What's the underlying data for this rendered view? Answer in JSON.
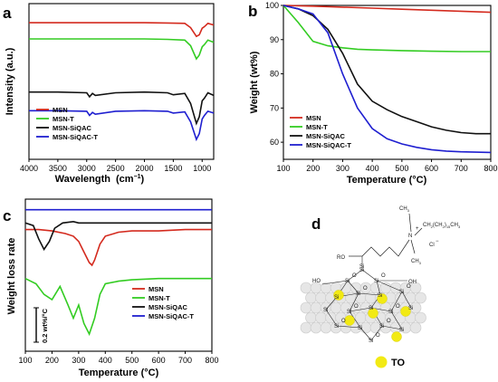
{
  "panels": {
    "a": {
      "letter": "a",
      "xlabel": "Wavelength",
      "xunit": "(cm",
      "xunit_sup": "−1",
      "xunit_close": ")",
      "ylabel": "Intensity (a.u.)"
    },
    "b": {
      "letter": "b",
      "xlabel": "Temperature (°C)",
      "ylabel": "Weight (wt%)"
    },
    "c": {
      "letter": "c",
      "xlabel": "Temperature (°C)",
      "ylabel": "Weight loss rate",
      "scalebar": "0.2 wt%/°C"
    },
    "d": {
      "letter": "d",
      "legend_label": "TO"
    }
  },
  "series_names": [
    "MSN",
    "MSN-T",
    "MSN-SiQAC",
    "MSN-SiQAC-T"
  ],
  "legend_c_names": [
    "MSN",
    "MSN-T",
    "MSN-SiQAC",
    "MSN-SiQAC-T"
  ],
  "colors": {
    "MSN": "#d42a1e",
    "MSN-T": "#33cc22",
    "MSN-SiQAC": "#111111",
    "MSN-SiQAC-T": "#1f1fd0",
    "TO": "#f2ea14"
  },
  "schematic": {
    "labels": [
      "RO",
      "Si",
      "O",
      "HO",
      "OH",
      "N",
      "Cl",
      "CH",
      "CH",
      "CH",
      "+",
      "−",
      "3",
      "3",
      "2",
      "2",
      "3",
      "15"
    ]
  },
  "chart_data": [
    {
      "type": "line",
      "panel": "a",
      "title": "",
      "xlabel": "Wavelength (cm−1)",
      "ylabel": "Intensity (a.u.)",
      "xlim": [
        4000,
        800
      ],
      "x_reversed": true,
      "xticks": [
        4000,
        3500,
        3000,
        2500,
        2000,
        1500,
        1000
      ],
      "y_ticks_shown": false,
      "series": [
        {
          "name": "MSN",
          "x": [
            4000,
            3500,
            3000,
            2500,
            2000,
            1600,
            1300,
            1200,
            1100,
            1050,
            1000,
            960,
            900,
            800
          ],
          "y": [
            0.97,
            0.97,
            0.97,
            0.97,
            0.97,
            0.96,
            0.95,
            0.82,
            0.55,
            0.6,
            0.8,
            0.85,
            0.95,
            0.9
          ]
        },
        {
          "name": "MSN-T",
          "x": [
            4000,
            3500,
            3000,
            2500,
            2000,
            1600,
            1300,
            1200,
            1100,
            1050,
            1000,
            960,
            900,
            800
          ],
          "y": [
            0.83,
            0.83,
            0.83,
            0.83,
            0.83,
            0.82,
            0.8,
            0.65,
            0.3,
            0.4,
            0.62,
            0.68,
            0.8,
            0.74
          ]
        },
        {
          "name": "MSN-SiQAC",
          "x": [
            4000,
            3500,
            3000,
            2950,
            2900,
            2850,
            2500,
            2000,
            1600,
            1500,
            1300,
            1200,
            1100,
            1050,
            1000,
            960,
            900,
            800
          ],
          "y": [
            0.57,
            0.57,
            0.56,
            0.5,
            0.55,
            0.52,
            0.56,
            0.57,
            0.56,
            0.53,
            0.55,
            0.4,
            0.1,
            0.2,
            0.44,
            0.48,
            0.56,
            0.52
          ]
        },
        {
          "name": "MSN-SiQAC-T",
          "x": [
            4000,
            3500,
            3000,
            2950,
            2900,
            2850,
            2500,
            2000,
            1600,
            1500,
            1300,
            1200,
            1100,
            1050,
            1000,
            960,
            900,
            800
          ],
          "y": [
            0.44,
            0.44,
            0.43,
            0.36,
            0.41,
            0.38,
            0.43,
            0.44,
            0.43,
            0.4,
            0.42,
            0.25,
            -0.05,
            0.05,
            0.3,
            0.36,
            0.43,
            0.4
          ]
        }
      ],
      "legend": "bottom-left"
    },
    {
      "type": "line",
      "panel": "b",
      "title": "",
      "xlabel": "Temperature (°C)",
      "ylabel": "Weight (wt%)",
      "xlim": [
        100,
        800
      ],
      "ylim": [
        55,
        100
      ],
      "xticks": [
        100,
        200,
        300,
        400,
        500,
        600,
        700,
        800
      ],
      "yticks": [
        60,
        70,
        80,
        90,
        100
      ],
      "series": [
        {
          "name": "MSN",
          "x": [
            100,
            200,
            300,
            400,
            500,
            600,
            700,
            800
          ],
          "y": [
            100,
            99.8,
            99.5,
            99.2,
            98.9,
            98.6,
            98.3,
            98.0
          ]
        },
        {
          "name": "MSN-T",
          "x": [
            100,
            150,
            200,
            250,
            300,
            350,
            400,
            500,
            600,
            700,
            800
          ],
          "y": [
            100,
            95,
            89.5,
            88.2,
            87.6,
            87.2,
            87.0,
            86.8,
            86.6,
            86.5,
            86.5
          ]
        },
        {
          "name": "MSN-SiQAC",
          "x": [
            100,
            150,
            200,
            250,
            300,
            350,
            400,
            450,
            500,
            550,
            600,
            650,
            700,
            750,
            800
          ],
          "y": [
            100,
            99,
            97,
            93,
            86,
            77,
            72,
            69.5,
            67.5,
            66,
            64.5,
            63.5,
            62.8,
            62.5,
            62.5
          ]
        },
        {
          "name": "MSN-SiQAC-T",
          "x": [
            100,
            150,
            200,
            250,
            300,
            350,
            400,
            450,
            500,
            550,
            600,
            650,
            700,
            750,
            800
          ],
          "y": [
            100,
            99,
            97.5,
            92,
            80,
            70,
            64,
            61,
            59.5,
            58.5,
            57.8,
            57.4,
            57.2,
            57.1,
            57.0
          ]
        }
      ],
      "legend": "bottom-left"
    },
    {
      "type": "line",
      "panel": "c",
      "title": "",
      "xlabel": "Temperature (°C)",
      "ylabel": "Weight loss rate",
      "xlim": [
        100,
        800
      ],
      "xticks": [
        100,
        200,
        300,
        400,
        500,
        600,
        700,
        800
      ],
      "y_ticks_shown": false,
      "series": [
        {
          "name": "MSN",
          "x": [
            100,
            150,
            200,
            250,
            280,
            300,
            320,
            340,
            350,
            360,
            380,
            400,
            450,
            500,
            600,
            700,
            800
          ],
          "y": [
            0.97,
            0.97,
            0.96,
            0.94,
            0.92,
            0.88,
            0.8,
            0.72,
            0.7,
            0.74,
            0.86,
            0.92,
            0.95,
            0.96,
            0.96,
            0.97,
            0.97
          ]
        },
        {
          "name": "MSN-T",
          "x": [
            100,
            140,
            170,
            200,
            230,
            260,
            280,
            300,
            320,
            340,
            360,
            380,
            400,
            450,
            500,
            600,
            700,
            800
          ],
          "y": [
            0.6,
            0.56,
            0.48,
            0.44,
            0.54,
            0.4,
            0.3,
            0.4,
            0.26,
            0.18,
            0.3,
            0.48,
            0.56,
            0.58,
            0.59,
            0.6,
            0.6,
            0.6
          ]
        },
        {
          "name": "MSN-SiQAC",
          "x": [
            100,
            130,
            150,
            170,
            190,
            210,
            240,
            280,
            300,
            400,
            500,
            600,
            700,
            800
          ],
          "y": [
            1.02,
            1.0,
            0.9,
            0.82,
            0.88,
            0.98,
            1.02,
            1.03,
            1.02,
            1.02,
            1.02,
            1.02,
            1.02,
            1.02
          ]
        },
        {
          "name": "MSN-SiQAC-T",
          "x": [
            100,
            200,
            300,
            400,
            500,
            600,
            700,
            800
          ],
          "y": [
            1.12,
            1.12,
            1.12,
            1.12,
            1.12,
            1.12,
            1.12,
            1.12
          ]
        }
      ],
      "legend": "bottom-right"
    }
  ]
}
